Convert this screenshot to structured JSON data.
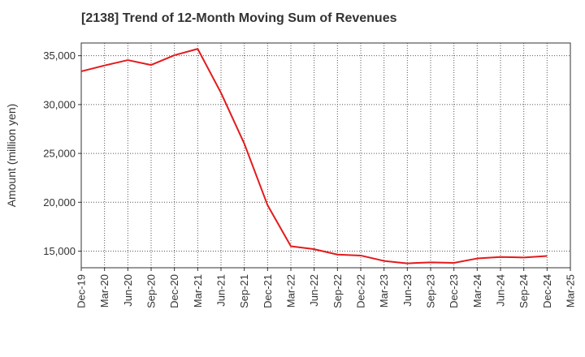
{
  "chart_data": {
    "type": "line",
    "title": "[2138]  Trend of 12-Month Moving Sum of Revenues",
    "ylabel": "Amount (million yen)",
    "xlabel": "",
    "x_tick_labels": [
      "Dec-19",
      "Mar-20",
      "Jun-20",
      "Sep-20",
      "Dec-20",
      "Mar-21",
      "Jun-21",
      "Sep-21",
      "Dec-21",
      "Mar-22",
      "Jun-22",
      "Sep-22",
      "Dec-22",
      "Mar-23",
      "Jun-23",
      "Sep-23",
      "Dec-23",
      "Mar-24",
      "Jun-24",
      "Sep-24",
      "Dec-24",
      "Mar-25"
    ],
    "y_ticks": [
      15000,
      20000,
      25000,
      30000,
      35000
    ],
    "y_tick_labels": [
      "15,000",
      "20,000",
      "25,000",
      "30,000",
      "35,000"
    ],
    "ylim": [
      13300,
      36300
    ],
    "grid": true,
    "series": [
      {
        "color": "#e31a1c",
        "x": [
          "Dec-19",
          "Mar-20",
          "Jun-20",
          "Sep-20",
          "Dec-20",
          "Mar-21",
          "Jun-21",
          "Sep-21",
          "Dec-21",
          "Mar-22",
          "Jun-22",
          "Sep-22",
          "Dec-22",
          "Mar-23",
          "Jun-23",
          "Sep-23",
          "Dec-23",
          "Mar-24",
          "Jun-24",
          "Sep-24",
          "Dec-24"
        ],
        "values": [
          33400,
          34000,
          34550,
          34050,
          35050,
          35700,
          31200,
          26000,
          19700,
          15500,
          15200,
          14650,
          14550,
          14000,
          13750,
          13850,
          13800,
          14250,
          14400,
          14350,
          14500
        ]
      }
    ]
  }
}
